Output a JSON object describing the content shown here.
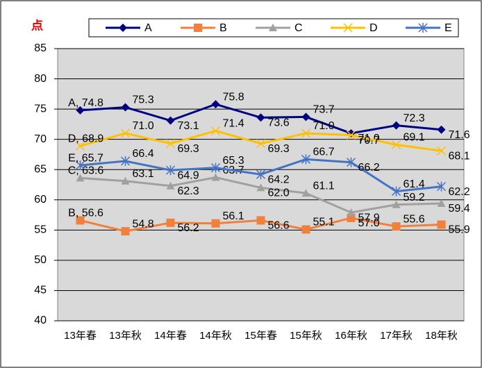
{
  "chart_data": {
    "type": "line",
    "y_axis_label": "点",
    "categories": [
      "13年春",
      "13年秋",
      "14年春",
      "14年秋",
      "15年春",
      "15年秋",
      "16年秋",
      "17年秋",
      "18年秋"
    ],
    "series": [
      {
        "name": "A",
        "color": "#000080",
        "marker": "diamond",
        "values": [
          74.8,
          75.3,
          73.1,
          75.8,
          73.6,
          73.7,
          71.0,
          72.3,
          71.6
        ],
        "value_labels": [
          "A, 74.8",
          "75.3",
          "73.1",
          "75.8",
          "73.6",
          "73.7",
          "71.0",
          "72.3",
          "71.6"
        ]
      },
      {
        "name": "B",
        "color": "#f0803c",
        "marker": "square",
        "values": [
          56.6,
          54.8,
          56.2,
          56.1,
          56.6,
          55.1,
          57.0,
          55.6,
          55.9
        ],
        "value_labels": [
          "B, 56.6",
          "54.8",
          "56.2",
          "56.1",
          "56.6",
          "55.1",
          "57.0",
          "55.6",
          "55.9"
        ]
      },
      {
        "name": "C",
        "color": "#a0a0a0",
        "marker": "triangle",
        "values": [
          63.6,
          63.1,
          62.3,
          63.7,
          62.0,
          61.1,
          57.9,
          59.2,
          59.4
        ],
        "value_labels": [
          "C, 63.6",
          "63.1",
          "62.3",
          "63.7",
          "62.0",
          "61.1",
          "57.9",
          "59.2",
          "59.4"
        ]
      },
      {
        "name": "D",
        "color": "#ffc000",
        "marker": "x",
        "values": [
          68.9,
          71.0,
          69.3,
          71.4,
          69.3,
          71.0,
          70.7,
          69.1,
          68.1
        ],
        "value_labels": [
          "D, 68.9",
          "71.0",
          "69.3",
          "71.4",
          "69.3",
          "71.0",
          "70.7",
          "69.1",
          "68.1"
        ]
      },
      {
        "name": "E",
        "color": "#4472c4",
        "marker": "star",
        "values": [
          65.7,
          66.4,
          64.9,
          65.3,
          64.2,
          66.7,
          66.2,
          61.4,
          62.2
        ],
        "value_labels": [
          "E, 65.7",
          "66.4",
          "64.9",
          "65.3",
          "64.2",
          "66.7",
          "66.2",
          "61.4",
          "62.2"
        ]
      }
    ],
    "ylim": [
      40,
      85
    ],
    "yticks": [
      40,
      45,
      50,
      55,
      60,
      65,
      70,
      75,
      80,
      85
    ],
    "grid": true,
    "legend": "top"
  }
}
